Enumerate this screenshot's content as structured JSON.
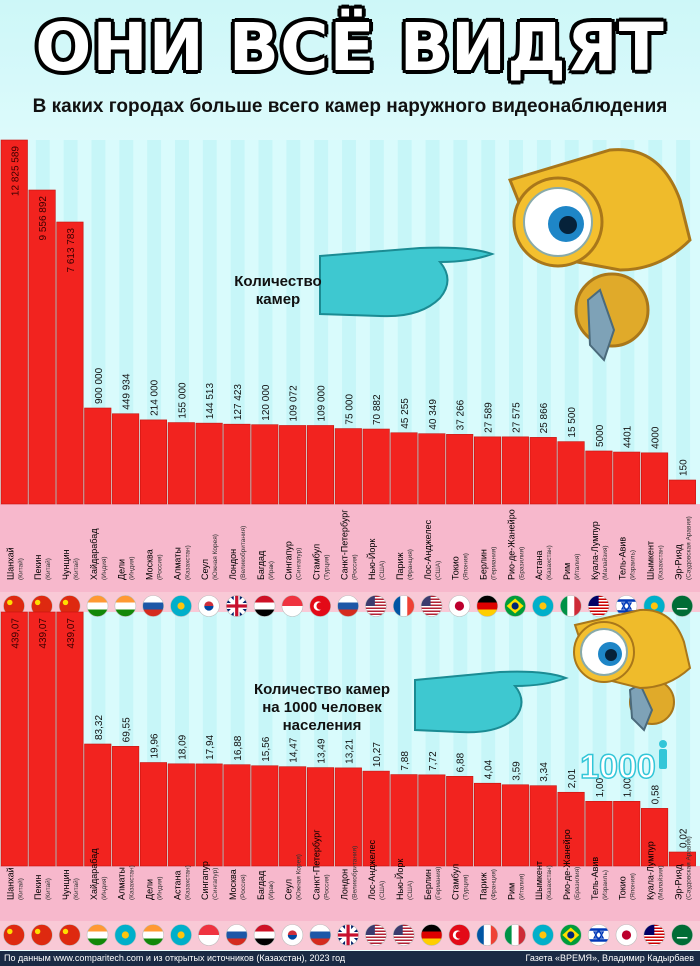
{
  "title": "ОНИ ВСЁ ВИДЯТ",
  "subtitle": "В каких городах больше всего камер наружного видеонаблюдения",
  "colors": {
    "bar": "#f2231f",
    "label_band": "#f7b8cc",
    "accent_teal": "#3ec8d0"
  },
  "footer_left": "По данным www.comparitech.com и из открытых источников (Казахстан), 2023 год",
  "footer_right": "Газета «ВРЕМЯ», Владимир Кадырбаев",
  "chart_data": [
    {
      "type": "bar",
      "label": "Количество камер",
      "categories": [
        "Шанхай",
        "Пекин",
        "Чунцин",
        "Хайдарабад",
        "Дели",
        "Москва",
        "Алматы",
        "Сеул",
        "Лондон",
        "Багдад",
        "Сингапур",
        "Стамбул",
        "Санкт-Петербург",
        "Нью-Йорк",
        "Париж",
        "Лос-Анджелес",
        "Токио",
        "Берлин",
        "Рио-де-Жанейро",
        "Астана",
        "Рим",
        "Куала-Лумпур",
        "Тель-Авив",
        "Шымкент",
        "Эр-Рияд"
      ],
      "countries": [
        "Китай",
        "Китай",
        "Китай",
        "Индия",
        "Индия",
        "Россия",
        "Казахстан",
        "Южная Корея",
        "Великобритания",
        "Ирак",
        "Сингапур",
        "Турция",
        "Россия",
        "США",
        "Франция",
        "США",
        "Япония",
        "Германия",
        "Бразилия",
        "Казахстан",
        "Италия",
        "Малайзия",
        "Израиль",
        "Казахстан",
        "Саудовская Аравия"
      ],
      "values": [
        12825589,
        9556892,
        7613783,
        900000,
        449934,
        214000,
        155000,
        144513,
        127423,
        120000,
        109072,
        109000,
        75000,
        70882,
        45255,
        40349,
        37266,
        27589,
        27575,
        25866,
        15500,
        5000,
        4401,
        4000,
        150
      ],
      "value_labels": [
        "12 825 589",
        "9 556 892",
        "7 613 783",
        "900 000",
        "449 934",
        "214 000",
        "155 000",
        "144 513",
        "127 423",
        "120 000",
        "109 072",
        "109 000",
        "75 000",
        "70 882",
        "45 255",
        "40 349",
        "37 266",
        "27 589",
        "27 575",
        "25 866",
        "15 500",
        "5000",
        "4401",
        "4000",
        "150"
      ]
    },
    {
      "type": "bar",
      "label": "Количество камер на 1000 человек населения",
      "badge": "1000",
      "categories": [
        "Шанхай",
        "Пекин",
        "Чунцин",
        "Хайдарабад",
        "Алматы",
        "Дели",
        "Астана",
        "Сингапур",
        "Москва",
        "Багдад",
        "Сеул",
        "Санкт-Петербург",
        "Лондон",
        "Лос-Анджелес",
        "Нью-Йорк",
        "Берлин",
        "Стамбул",
        "Париж",
        "Рим",
        "Шымкент",
        "Рио-де-Жанейро",
        "Тель-Авив",
        "Токио",
        "Куала-Лумпур",
        "Эр-Рияд"
      ],
      "countries": [
        "Китай",
        "Китай",
        "Китай",
        "Индия",
        "Казахстан",
        "Индия",
        "Казахстан",
        "Сингапур",
        "Россия",
        "Ирак",
        "Южная Корея",
        "Россия",
        "Великобритания",
        "США",
        "США",
        "Германия",
        "Турция",
        "Франция",
        "Италия",
        "Казахстан",
        "Бразилия",
        "Израиль",
        "Япония",
        "Малайзия",
        "Саудовская Аравия"
      ],
      "values": [
        439.07,
        439.07,
        439.07,
        83.32,
        69.55,
        19.96,
        18.09,
        17.94,
        16.88,
        15.56,
        14.47,
        13.49,
        13.21,
        10.27,
        7.88,
        7.72,
        6.88,
        4.04,
        3.59,
        3.34,
        2.01,
        1.0,
        1.0,
        0.58,
        0.02
      ],
      "value_labels": [
        "439,07",
        "439,07",
        "439,07",
        "83,32",
        "69,55",
        "19,96",
        "18,09",
        "17,94",
        "16,88",
        "15,56",
        "14,47",
        "13,49",
        "13,21",
        "10,27",
        "7,88",
        "7,72",
        "6,88",
        "4,04",
        "3,59",
        "3,34",
        "2,01",
        "1,00",
        "1,00",
        "0,58",
        "0,02"
      ]
    }
  ],
  "flags": {
    "Китай": {
      "kind": "star",
      "bg": "#de2910",
      "fg": "#ffde00"
    },
    "Индия": {
      "kind": "h3",
      "c": [
        "#ff9933",
        "#ffffff",
        "#138808"
      ]
    },
    "Россия": {
      "kind": "h3",
      "c": [
        "#ffffff",
        "#1c57a7",
        "#d52b1e"
      ]
    },
    "Казахстан": {
      "kind": "sun",
      "bg": "#00afca",
      "fg": "#fec50c"
    },
    "Южная Корея": {
      "kind": "taeguk",
      "bg": "#ffffff",
      "fg": "#cd2e3a",
      "fg2": "#0047a0"
    },
    "Великобритания": {
      "kind": "uk",
      "bg": "#012169",
      "fg": "#ffffff",
      "fg2": "#c8102e"
    },
    "Ирак": {
      "kind": "h3",
      "c": [
        "#ce1126",
        "#ffffff",
        "#000000"
      ]
    },
    "Сингапур": {
      "kind": "h2",
      "c": [
        "#ef3340",
        "#ffffff"
      ]
    },
    "Турция": {
      "kind": "crescent",
      "bg": "#e30a17",
      "fg": "#ffffff"
    },
    "США": {
      "kind": "us",
      "bg": "#b22234",
      "fg": "#ffffff",
      "fg2": "#3c3b6e"
    },
    "Франция": {
      "kind": "v3",
      "c": [
        "#0055a4",
        "#ffffff",
        "#ef4135"
      ]
    },
    "Япония": {
      "kind": "disc",
      "bg": "#ffffff",
      "fg": "#bc002d"
    },
    "Германия": {
      "kind": "h3",
      "c": [
        "#000000",
        "#dd0000",
        "#ffce00"
      ]
    },
    "Бразилия": {
      "kind": "diamond",
      "bg": "#009c3b",
      "fg": "#ffdf00",
      "fg2": "#002776"
    },
    "Италия": {
      "kind": "v3",
      "c": [
        "#009246",
        "#ffffff",
        "#ce2b37"
      ]
    },
    "Малайзия": {
      "kind": "my",
      "bg": "#cc0001",
      "fg": "#ffffff",
      "fg2": "#010066"
    },
    "Израиль": {
      "kind": "il",
      "bg": "#ffffff",
      "fg": "#0038b8"
    },
    "Саудовская Аравия": {
      "kind": "sa",
      "bg": "#006c35",
      "fg": "#ffffff"
    }
  }
}
